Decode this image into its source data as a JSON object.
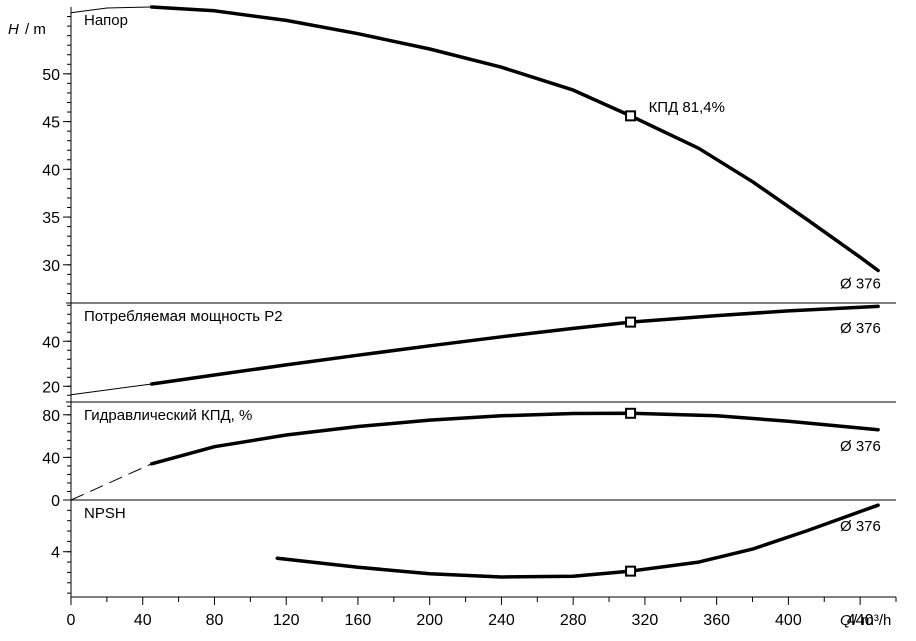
{
  "chart_data": {
    "type": "line",
    "x_axis": {
      "symbol": "Q",
      "unit": "/ m³/h",
      "range": [
        0,
        460
      ],
      "ticks": [
        0,
        40,
        80,
        120,
        160,
        200,
        240,
        280,
        320,
        360,
        400,
        440
      ]
    },
    "panels": [
      {
        "id": "head",
        "title": "Напор",
        "y_axis": {
          "symbol": "H",
          "unit": "/ m",
          "range": [
            26,
            57
          ],
          "ticks": [
            30,
            35,
            40,
            45,
            50
          ]
        },
        "diameter_label": "Ø 376",
        "annotation": {
          "text": "КПД 81,4%",
          "x": 312,
          "y": 45.6
        },
        "extension": [
          [
            0,
            56.4
          ],
          [
            20,
            56.9
          ],
          [
            45,
            57.0
          ]
        ],
        "series": [
          [
            45,
            57.0
          ],
          [
            80,
            56.6
          ],
          [
            120,
            55.6
          ],
          [
            160,
            54.2
          ],
          [
            200,
            52.6
          ],
          [
            240,
            50.7
          ],
          [
            280,
            48.3
          ],
          [
            312,
            45.6
          ],
          [
            350,
            42.2
          ],
          [
            380,
            38.7
          ],
          [
            410,
            34.8
          ],
          [
            440,
            30.8
          ],
          [
            450,
            29.4
          ]
        ],
        "duty_point": [
          312,
          45.6
        ]
      },
      {
        "id": "power",
        "title": "Потребляемая мощность P2",
        "y_axis": {
          "range": [
            13,
            57
          ],
          "ticks": [
            20,
            40
          ]
        },
        "diameter_label": "Ø 376",
        "extension": [
          [
            0,
            16.2
          ],
          [
            45,
            21.0
          ]
        ],
        "series": [
          [
            45,
            21.0
          ],
          [
            80,
            25.0
          ],
          [
            120,
            29.5
          ],
          [
            160,
            33.8
          ],
          [
            200,
            38.0
          ],
          [
            240,
            42.0
          ],
          [
            280,
            45.7
          ],
          [
            312,
            48.5
          ],
          [
            360,
            51.4
          ],
          [
            400,
            53.5
          ],
          [
            450,
            55.5
          ]
        ],
        "duty_point": [
          312,
          48.5
        ]
      },
      {
        "id": "efficiency",
        "title": "Гидравлический КПД, %",
        "y_axis": {
          "range": [
            0,
            92
          ],
          "ticks": [
            0,
            40,
            80
          ]
        },
        "diameter_label": "Ø 376",
        "extension": [
          [
            0,
            0
          ],
          [
            45,
            34
          ]
        ],
        "series": [
          [
            45,
            34
          ],
          [
            80,
            50
          ],
          [
            120,
            61
          ],
          [
            160,
            69
          ],
          [
            200,
            75
          ],
          [
            240,
            79
          ],
          [
            280,
            81.2
          ],
          [
            312,
            81.4
          ],
          [
            360,
            79
          ],
          [
            400,
            74
          ],
          [
            450,
            66
          ]
        ],
        "duty_point": [
          312,
          81.4
        ]
      },
      {
        "id": "npsh",
        "title": "NPSH",
        "y_axis": {
          "range": [
            0.5,
            8.0
          ],
          "ticks": [
            4
          ]
        },
        "diameter_label": "Ø 376",
        "series": [
          [
            115,
            3.5
          ],
          [
            160,
            2.8
          ],
          [
            200,
            2.3
          ],
          [
            240,
            2.05
          ],
          [
            280,
            2.1
          ],
          [
            312,
            2.5
          ],
          [
            350,
            3.2
          ],
          [
            380,
            4.2
          ],
          [
            410,
            5.6
          ],
          [
            440,
            7.1
          ],
          [
            450,
            7.6
          ]
        ],
        "duty_point": [
          312,
          2.5
        ]
      }
    ]
  }
}
